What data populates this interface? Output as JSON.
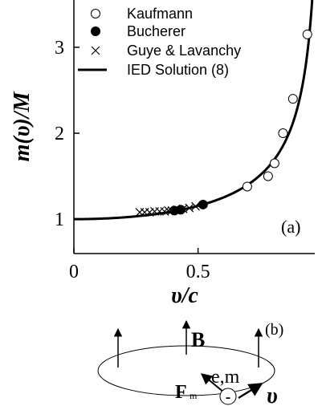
{
  "chart_data": {
    "type": "scatter",
    "xlim": [
      0,
      0.97
    ],
    "ylim": [
      0.6,
      3.55
    ],
    "xticks": [
      0,
      0.5
    ],
    "xtick_labels": [
      "0",
      "0.5"
    ],
    "yticks": [
      1,
      2,
      3
    ],
    "ytick_labels": [
      "1",
      "2",
      "3"
    ],
    "xlabel": "υ/c",
    "ylabel": "m(υ)/M",
    "panel_label": "(a)",
    "legend_position": "top-right",
    "series": [
      {
        "name": "Kaufmann",
        "marker": "open-circle",
        "x": [
          0.698,
          0.782,
          0.808,
          0.842,
          0.882,
          0.94
        ],
        "y": [
          1.38,
          1.5,
          1.65,
          2.0,
          2.4,
          3.15
        ]
      },
      {
        "name": "Bucherer",
        "marker": "filled-circle",
        "x": [
          0.405,
          0.43,
          0.52
        ],
        "y": [
          1.1,
          1.11,
          1.17
        ]
      },
      {
        "name": "Guye & Lavanchy",
        "marker": "x",
        "x": [
          0.265,
          0.285,
          0.305,
          0.325,
          0.345,
          0.365,
          0.38,
          0.395,
          0.415,
          0.44,
          0.465,
          0.49
        ],
        "y": [
          1.08,
          1.08,
          1.08,
          1.09,
          1.09,
          1.09,
          1.1,
          1.1,
          1.11,
          1.12,
          1.13,
          1.15
        ]
      },
      {
        "name": "IED Solution (8)",
        "marker": "line",
        "curve": "1/sqrt(1-x^2)",
        "x_max": 0.965
      }
    ]
  },
  "diagram": {
    "panel_label": "(b)",
    "field_label": "B",
    "force_label": "F",
    "force_subscript": "m",
    "charge_label": "-e,m",
    "particle_sign": "-",
    "velocity_label": "υ"
  }
}
